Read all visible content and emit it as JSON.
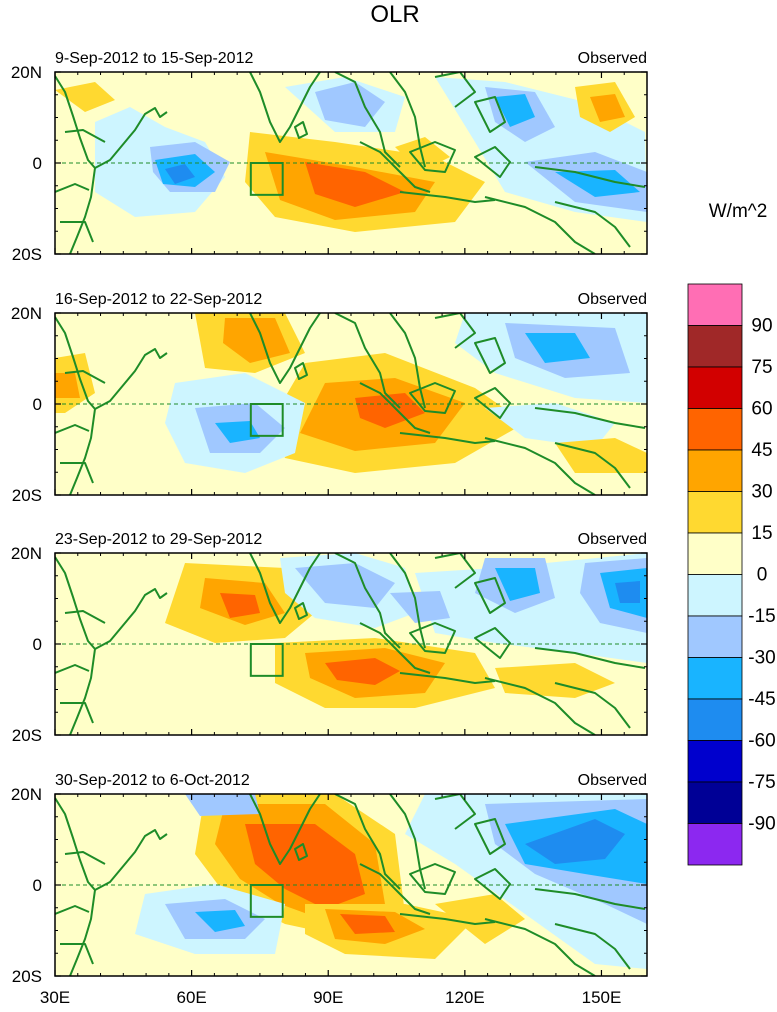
{
  "figure": {
    "title": "OLR",
    "units_label": "W/m^2"
  },
  "chart_data": {
    "type": "heatmap",
    "variable": "OLR anomaly",
    "units": "W/m^2",
    "x_ticks": [
      "30E",
      "60E",
      "90E",
      "120E",
      "150E"
    ],
    "x_tick_values": [
      30,
      60,
      90,
      120,
      150
    ],
    "xlim": [
      30,
      160
    ],
    "y_ticks": [
      "20N",
      "0",
      "20S"
    ],
    "y_tick_values": [
      20,
      0,
      -20
    ],
    "ylim": [
      -20,
      20
    ],
    "box_region": {
      "lon": [
        73,
        80
      ],
      "lat": [
        -7,
        0
      ]
    },
    "colorbar": {
      "labels": [
        "90",
        "75",
        "60",
        "45",
        "30",
        "15",
        "0",
        "-15",
        "-30",
        "-45",
        "-60",
        "-75",
        "-90"
      ],
      "colors": [
        "#ff6eb4",
        "#a02828",
        "#d20000",
        "#ff6400",
        "#ffa500",
        "#ffd930",
        "#ffffc8",
        "#cdf5ff",
        "#a0c8ff",
        "#19b4ff",
        "#1e8cf0",
        "#0000cd",
        "#000096",
        "#8c28f0"
      ]
    },
    "panels": [
      {
        "period": "9-Sep-2012 to 15-Sep-2012",
        "tag": "Observed"
      },
      {
        "period": "16-Sep-2012 to 22-Sep-2012",
        "tag": "Observed"
      },
      {
        "period": "23-Sep-2012 to 29-Sep-2012",
        "tag": "Observed"
      },
      {
        "period": "30-Sep-2012 to 6-Oct-2012",
        "tag": "Observed"
      }
    ]
  }
}
